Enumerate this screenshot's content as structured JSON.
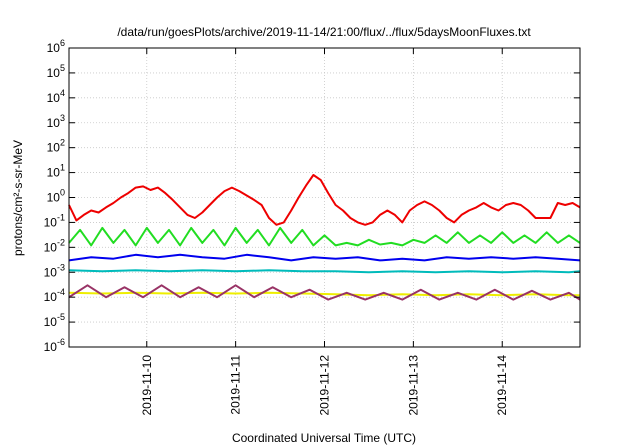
{
  "chart_data": {
    "type": "line",
    "title": "/data/run/goesPlots/archive/2019-11-14/21:00/flux/../flux/5daysMoonFluxes.txt",
    "xlabel": "Coordinated Universal Time (UTC)",
    "ylabel": "protons/cm²-s-sr-MeV",
    "yscale": "log",
    "ylim": [
      1e-06,
      1000000.0
    ],
    "xlim": [
      "2019-11-09T03:00",
      "2019-11-14T21:00"
    ],
    "grid": true,
    "y_ticks": [
      {
        "base": "10",
        "exp": "-6",
        "value": 1e-06
      },
      {
        "base": "10",
        "exp": "-5",
        "value": 1e-05
      },
      {
        "base": "10",
        "exp": "-4",
        "value": 0.0001
      },
      {
        "base": "10",
        "exp": "-3",
        "value": 0.001
      },
      {
        "base": "10",
        "exp": "-2",
        "value": 0.01
      },
      {
        "base": "10",
        "exp": "-1",
        "value": 0.1
      },
      {
        "base": "10",
        "exp": "0",
        "value": 1
      },
      {
        "base": "10",
        "exp": "1",
        "value": 10
      },
      {
        "base": "10",
        "exp": "2",
        "value": 100
      },
      {
        "base": "10",
        "exp": "3",
        "value": 1000
      },
      {
        "base": "10",
        "exp": "4",
        "value": 10000
      },
      {
        "base": "10",
        "exp": "5",
        "value": 100000
      },
      {
        "base": "10",
        "exp": "6",
        "value": 1000000
      }
    ],
    "x_ticks": [
      "2019-11-10",
      "2019-11-11",
      "2019-11-12",
      "2019-11-13",
      "2019-11-14"
    ],
    "series": [
      {
        "color": "#ee0000",
        "x": [
          "2019-11-09T03:00",
          "2019-11-09T05:00",
          "2019-11-09T07:00",
          "2019-11-09T09:00",
          "2019-11-09T11:00",
          "2019-11-09T13:00",
          "2019-11-09T15:00",
          "2019-11-09T17:00",
          "2019-11-09T19:00",
          "2019-11-09T21:00",
          "2019-11-09T23:00",
          "2019-11-10T01:00",
          "2019-11-10T03:00",
          "2019-11-10T05:00",
          "2019-11-10T07:00",
          "2019-11-10T09:00",
          "2019-11-10T11:00",
          "2019-11-10T13:00",
          "2019-11-10T15:00",
          "2019-11-10T17:00",
          "2019-11-10T19:00",
          "2019-11-10T21:00",
          "2019-11-10T23:00",
          "2019-11-11T01:00",
          "2019-11-11T03:00",
          "2019-11-11T05:00",
          "2019-11-11T07:00",
          "2019-11-11T09:00",
          "2019-11-11T11:00",
          "2019-11-11T13:00",
          "2019-11-11T15:00",
          "2019-11-11T17:00",
          "2019-11-11T19:00",
          "2019-11-11T21:00",
          "2019-11-11T23:00",
          "2019-11-12T01:00",
          "2019-11-12T03:00",
          "2019-11-12T05:00",
          "2019-11-12T07:00",
          "2019-11-12T09:00",
          "2019-11-12T11:00",
          "2019-11-12T13:00",
          "2019-11-12T15:00",
          "2019-11-12T17:00",
          "2019-11-12T19:00",
          "2019-11-12T21:00",
          "2019-11-12T23:00",
          "2019-11-13T01:00",
          "2019-11-13T03:00",
          "2019-11-13T05:00",
          "2019-11-13T07:00",
          "2019-11-13T09:00",
          "2019-11-13T11:00",
          "2019-11-13T13:00",
          "2019-11-13T15:00",
          "2019-11-13T17:00",
          "2019-11-13T19:00",
          "2019-11-13T21:00",
          "2019-11-13T23:00",
          "2019-11-14T01:00",
          "2019-11-14T03:00",
          "2019-11-14T05:00",
          "2019-11-14T07:00",
          "2019-11-14T09:00",
          "2019-11-14T11:00",
          "2019-11-14T13:00",
          "2019-11-14T15:00",
          "2019-11-14T17:00",
          "2019-11-14T19:00",
          "2019-11-14T21:00"
        ],
        "y": [
          0.5,
          0.12,
          0.2,
          0.3,
          0.25,
          0.4,
          0.6,
          1.0,
          1.5,
          2.5,
          2.8,
          2.0,
          2.5,
          1.5,
          0.8,
          0.4,
          0.2,
          0.15,
          0.25,
          0.5,
          1.0,
          1.8,
          2.5,
          1.8,
          1.2,
          0.8,
          0.5,
          0.15,
          0.08,
          0.1,
          0.3,
          1.0,
          3.0,
          8.0,
          5.0,
          1.5,
          0.5,
          0.3,
          0.15,
          0.1,
          0.08,
          0.1,
          0.2,
          0.3,
          0.2,
          0.1,
          0.3,
          0.5,
          0.7,
          0.5,
          0.3,
          0.15,
          0.1,
          0.2,
          0.3,
          0.4,
          0.6,
          0.4,
          0.3,
          0.5,
          0.6,
          0.5,
          0.3,
          0.15,
          0.15,
          0.15,
          0.6,
          0.5,
          0.6,
          0.4
        ]
      },
      {
        "color": "#22dd22",
        "x": [
          "2019-11-09T03:00",
          "2019-11-09T06:00",
          "2019-11-09T09:00",
          "2019-11-09T12:00",
          "2019-11-09T15:00",
          "2019-11-09T18:00",
          "2019-11-09T21:00",
          "2019-11-10T00:00",
          "2019-11-10T03:00",
          "2019-11-10T06:00",
          "2019-11-10T09:00",
          "2019-11-10T12:00",
          "2019-11-10T15:00",
          "2019-11-10T18:00",
          "2019-11-10T21:00",
          "2019-11-11T00:00",
          "2019-11-11T03:00",
          "2019-11-11T06:00",
          "2019-11-11T09:00",
          "2019-11-11T12:00",
          "2019-11-11T15:00",
          "2019-11-11T18:00",
          "2019-11-11T21:00",
          "2019-11-12T00:00",
          "2019-11-12T03:00",
          "2019-11-12T06:00",
          "2019-11-12T09:00",
          "2019-11-12T12:00",
          "2019-11-12T15:00",
          "2019-11-12T18:00",
          "2019-11-12T21:00",
          "2019-11-13T00:00",
          "2019-11-13T03:00",
          "2019-11-13T06:00",
          "2019-11-13T09:00",
          "2019-11-13T12:00",
          "2019-11-13T15:00",
          "2019-11-13T18:00",
          "2019-11-13T21:00",
          "2019-11-14T00:00",
          "2019-11-14T03:00",
          "2019-11-14T06:00",
          "2019-11-14T09:00",
          "2019-11-14T12:00",
          "2019-11-14T15:00",
          "2019-11-14T18:00",
          "2019-11-14T21:00"
        ],
        "y": [
          0.015,
          0.05,
          0.012,
          0.06,
          0.015,
          0.05,
          0.012,
          0.06,
          0.015,
          0.05,
          0.012,
          0.06,
          0.015,
          0.05,
          0.012,
          0.06,
          0.015,
          0.05,
          0.012,
          0.06,
          0.015,
          0.05,
          0.012,
          0.03,
          0.012,
          0.015,
          0.012,
          0.02,
          0.013,
          0.015,
          0.012,
          0.02,
          0.015,
          0.03,
          0.015,
          0.04,
          0.015,
          0.03,
          0.015,
          0.04,
          0.015,
          0.03,
          0.015,
          0.04,
          0.015,
          0.03,
          0.015
        ]
      },
      {
        "color": "#0000ee",
        "x": [
          "2019-11-09T03:00",
          "2019-11-09T09:00",
          "2019-11-09T15:00",
          "2019-11-09T21:00",
          "2019-11-10T03:00",
          "2019-11-10T09:00",
          "2019-11-10T15:00",
          "2019-11-10T21:00",
          "2019-11-11T03:00",
          "2019-11-11T09:00",
          "2019-11-11T15:00",
          "2019-11-11T21:00",
          "2019-11-12T03:00",
          "2019-11-12T09:00",
          "2019-11-12T15:00",
          "2019-11-12T21:00",
          "2019-11-13T03:00",
          "2019-11-13T09:00",
          "2019-11-13T15:00",
          "2019-11-13T21:00",
          "2019-11-14T03:00",
          "2019-11-14T09:00",
          "2019-11-14T15:00",
          "2019-11-14T21:00"
        ],
        "y": [
          0.003,
          0.004,
          0.0035,
          0.005,
          0.004,
          0.005,
          0.004,
          0.0035,
          0.005,
          0.004,
          0.003,
          0.004,
          0.0035,
          0.004,
          0.003,
          0.0035,
          0.003,
          0.004,
          0.0035,
          0.004,
          0.0035,
          0.004,
          0.0035,
          0.003
        ]
      },
      {
        "color": "#00bbbb",
        "x": [
          "2019-11-09T03:00",
          "2019-11-09T12:00",
          "2019-11-09T21:00",
          "2019-11-10T06:00",
          "2019-11-10T15:00",
          "2019-11-11T00:00",
          "2019-11-11T09:00",
          "2019-11-11T18:00",
          "2019-11-12T03:00",
          "2019-11-12T12:00",
          "2019-11-12T21:00",
          "2019-11-13T06:00",
          "2019-11-13T15:00",
          "2019-11-14T00:00",
          "2019-11-14T09:00",
          "2019-11-14T18:00",
          "2019-11-14T21:00"
        ],
        "y": [
          0.0012,
          0.0011,
          0.0012,
          0.0011,
          0.0012,
          0.0011,
          0.0012,
          0.0011,
          0.0011,
          0.001,
          0.0011,
          0.001,
          0.0011,
          0.001,
          0.0011,
          0.001,
          0.0011
        ]
      },
      {
        "color": "#eeee00",
        "x": [
          "2019-11-09T03:00",
          "2019-11-09T12:00",
          "2019-11-09T21:00",
          "2019-11-10T06:00",
          "2019-11-10T15:00",
          "2019-11-11T00:00",
          "2019-11-11T09:00",
          "2019-11-11T18:00",
          "2019-11-12T03:00",
          "2019-11-12T12:00",
          "2019-11-12T21:00",
          "2019-11-13T06:00",
          "2019-11-13T15:00",
          "2019-11-14T00:00",
          "2019-11-14T09:00",
          "2019-11-14T18:00",
          "2019-11-14T21:00"
        ],
        "y": [
          0.00015,
          0.00014,
          0.00015,
          0.00014,
          0.00015,
          0.00014,
          0.00015,
          0.00014,
          0.00013,
          0.00012,
          0.00013,
          0.00012,
          0.00013,
          0.00012,
          0.00013,
          0.00012,
          0.00012
        ]
      },
      {
        "color": "#993366",
        "x": [
          "2019-11-09T03:00",
          "2019-11-09T08:00",
          "2019-11-09T13:00",
          "2019-11-09T18:00",
          "2019-11-09T23:00",
          "2019-11-10T04:00",
          "2019-11-10T09:00",
          "2019-11-10T14:00",
          "2019-11-10T19:00",
          "2019-11-11T00:00",
          "2019-11-11T05:00",
          "2019-11-11T10:00",
          "2019-11-11T15:00",
          "2019-11-11T20:00",
          "2019-11-12T01:00",
          "2019-11-12T06:00",
          "2019-11-12T11:00",
          "2019-11-12T16:00",
          "2019-11-12T21:00",
          "2019-11-13T02:00",
          "2019-11-13T07:00",
          "2019-11-13T12:00",
          "2019-11-13T17:00",
          "2019-11-13T22:00",
          "2019-11-14T03:00",
          "2019-11-14T08:00",
          "2019-11-14T13:00",
          "2019-11-14T18:00",
          "2019-11-14T21:00"
        ],
        "y": [
          0.0001,
          0.0003,
          0.0001,
          0.00025,
          0.0001,
          0.0003,
          0.0001,
          0.00025,
          0.0001,
          0.0003,
          0.0001,
          0.00025,
          0.0001,
          0.0002,
          8e-05,
          0.00015,
          8e-05,
          0.00015,
          8e-05,
          0.0002,
          8e-05,
          0.00015,
          8e-05,
          0.0002,
          8e-05,
          0.00018,
          8e-05,
          0.00015,
          8e-05
        ]
      }
    ]
  }
}
